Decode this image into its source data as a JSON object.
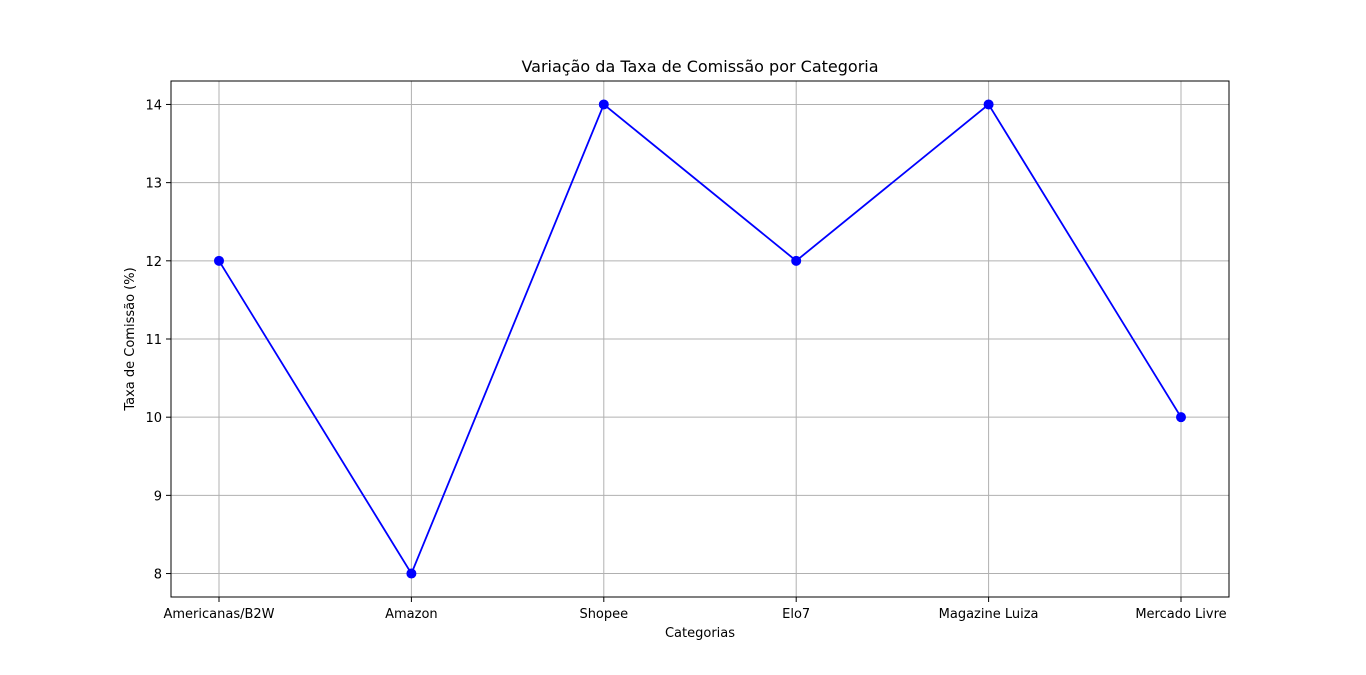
{
  "chart_data": {
    "type": "line",
    "title": "Variação da Taxa de Comissão por Categoria",
    "xlabel": "Categorias",
    "ylabel": "Taxa de Comissão (%)",
    "categories": [
      "Americanas/B2W",
      "Amazon",
      "Shopee",
      "Elo7",
      "Magazine Luiza",
      "Mercado Livre"
    ],
    "series": [
      {
        "values": [
          12,
          8,
          14,
          12,
          14,
          10
        ],
        "color": "#0000ff",
        "marker": "circle"
      }
    ],
    "ylim": [
      7.7,
      14.3
    ],
    "yticks": [
      8,
      9,
      10,
      11,
      12,
      13,
      14
    ],
    "grid": true,
    "legend": "none"
  }
}
